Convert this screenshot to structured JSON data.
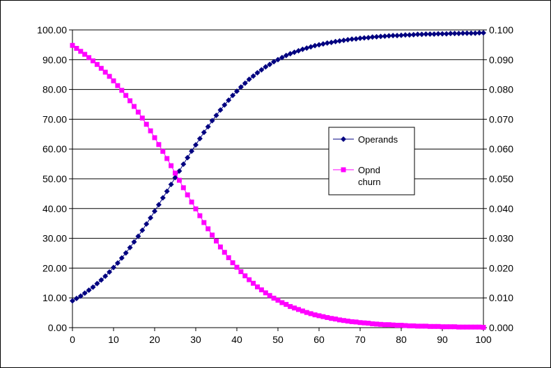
{
  "chart_data": {
    "type": "line",
    "title": "",
    "xlabel": "",
    "ylabel": "",
    "y2label": "",
    "grid": "horizontal",
    "legend_position": "right",
    "x_ticks": [
      "0",
      "10",
      "20",
      "30",
      "40",
      "50",
      "60",
      "70",
      "80",
      "90",
      "100"
    ],
    "y_left_ticks": [
      "0.00",
      "10.00",
      "20.00",
      "30.00",
      "40.00",
      "50.00",
      "60.00",
      "70.00",
      "80.00",
      "90.00",
      "100.00"
    ],
    "y_right_ticks": [
      "0.000",
      "0.010",
      "0.020",
      "0.030",
      "0.040",
      "0.050",
      "0.060",
      "0.070",
      "0.080",
      "0.090",
      "0.100"
    ],
    "xlim": [
      0,
      100
    ],
    "ylim_left": [
      0,
      100
    ],
    "ylim_right": [
      0,
      0.1
    ],
    "x": [
      0,
      1,
      2,
      3,
      4,
      5,
      6,
      7,
      8,
      9,
      10,
      11,
      12,
      13,
      14,
      15,
      16,
      17,
      18,
      19,
      20,
      21,
      22,
      23,
      24,
      25,
      26,
      27,
      28,
      29,
      30,
      31,
      32,
      33,
      34,
      35,
      36,
      37,
      38,
      39,
      40,
      41,
      42,
      43,
      44,
      45,
      46,
      47,
      48,
      49,
      50,
      51,
      52,
      53,
      54,
      55,
      56,
      57,
      58,
      59,
      60,
      61,
      62,
      63,
      64,
      65,
      66,
      67,
      68,
      69,
      70,
      71,
      72,
      73,
      74,
      75,
      76,
      77,
      78,
      79,
      80,
      81,
      82,
      83,
      84,
      85,
      86,
      87,
      88,
      89,
      90,
      91,
      92,
      93,
      94,
      95,
      96,
      97,
      98,
      99,
      100
    ],
    "series": [
      {
        "name": "Operands",
        "axis": "left",
        "color": "#000080",
        "marker": "diamond",
        "values": [
          9.0,
          9.8,
          10.6,
          11.6,
          12.6,
          13.6,
          14.8,
          16.0,
          17.3,
          18.7,
          20.2,
          21.7,
          23.4,
          25.1,
          26.9,
          28.8,
          30.7,
          32.7,
          34.8,
          36.9,
          39.1,
          41.3,
          43.6,
          45.8,
          48.1,
          50.4,
          52.6,
          54.9,
          57.1,
          59.3,
          61.4,
          63.5,
          65.6,
          67.5,
          69.5,
          71.3,
          73.1,
          74.8,
          76.4,
          78.0,
          79.4,
          80.8,
          82.1,
          83.4,
          84.5,
          85.6,
          86.6,
          87.6,
          88.4,
          89.3,
          90.0,
          90.7,
          91.4,
          92.0,
          92.5,
          93.0,
          93.5,
          93.9,
          94.3,
          94.7,
          95.0,
          95.3,
          95.6,
          95.8,
          96.1,
          96.3,
          96.5,
          96.7,
          96.9,
          97.0,
          97.2,
          97.3,
          97.4,
          97.6,
          97.7,
          97.8,
          97.9,
          98.0,
          98.1,
          98.1,
          98.2,
          98.3,
          98.3,
          98.4,
          98.5,
          98.5,
          98.6,
          98.6,
          98.6,
          98.7,
          98.7,
          98.7,
          98.8,
          98.8,
          98.8,
          98.9,
          98.9,
          98.9,
          98.9,
          99.0,
          99.0
        ]
      },
      {
        "name": "Opnd churn",
        "axis": "right",
        "color": "#FF00FF",
        "marker": "square",
        "values": [
          0.0948,
          0.0938,
          0.0928,
          0.0918,
          0.0907,
          0.0896,
          0.0884,
          0.0871,
          0.0858,
          0.0844,
          0.0829,
          0.0813,
          0.0797,
          0.078,
          0.0762,
          0.0743,
          0.0724,
          0.0704,
          0.0683,
          0.0661,
          0.0638,
          0.0615,
          0.0592,
          0.0568,
          0.0544,
          0.0519,
          0.0495,
          0.047,
          0.0446,
          0.0422,
          0.0399,
          0.0376,
          0.0353,
          0.0332,
          0.0311,
          0.0291,
          0.0271,
          0.0253,
          0.0235,
          0.0218,
          0.0203,
          0.0188,
          0.0174,
          0.0161,
          0.0149,
          0.0137,
          0.0127,
          0.0117,
          0.0108,
          0.0099,
          0.0092,
          0.0084,
          0.0078,
          0.0071,
          0.0066,
          0.0061,
          0.0056,
          0.0051,
          0.0047,
          0.0043,
          0.004,
          0.0037,
          0.0034,
          0.0031,
          0.0029,
          0.0026,
          0.0024,
          0.0022,
          0.002,
          0.0019,
          0.0017,
          0.0016,
          0.0015,
          0.0013,
          0.0012,
          0.0011,
          0.001,
          0.001,
          0.0009,
          0.0008,
          0.0008,
          0.0007,
          0.0006,
          0.0006,
          0.0005,
          0.0005,
          0.0005,
          0.0004,
          0.0004,
          0.0004,
          0.0003,
          0.0003,
          0.0003,
          0.0003,
          0.0002,
          0.0002,
          0.0002,
          0.0002,
          0.0002,
          0.0002,
          0.0001
        ]
      }
    ],
    "legend": [
      {
        "label_lines": [
          "Operands"
        ],
        "series_index": 0
      },
      {
        "label_lines": [
          "Opnd",
          "churn"
        ],
        "series_index": 1
      }
    ]
  }
}
